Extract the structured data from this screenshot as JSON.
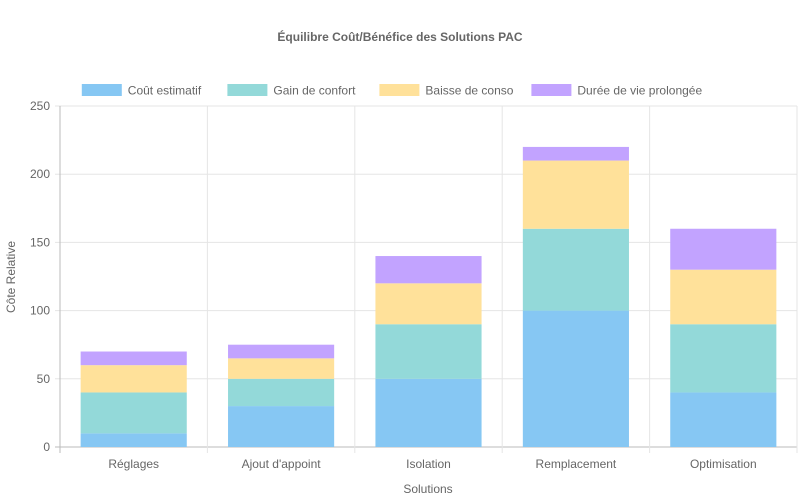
{
  "chart_data": {
    "type": "bar",
    "stacked": true,
    "title": "Équilibre Coût/Bénéfice des Solutions PAC",
    "xlabel": "Solutions",
    "ylabel": "Côte Relative",
    "ylim": [
      0,
      250
    ],
    "yticks": [
      0,
      50,
      100,
      150,
      200,
      250
    ],
    "grid": true,
    "legend_position": "top",
    "categories": [
      "Réglages",
      "Ajout d'appoint",
      "Isolation",
      "Remplacement",
      "Optimisation"
    ],
    "series": [
      {
        "name": "Coût estimatif",
        "color": "#86c7f3",
        "values": [
          10,
          30,
          50,
          100,
          40
        ]
      },
      {
        "name": "Gain de confort",
        "color": "#93d9d9",
        "values": [
          30,
          20,
          40,
          60,
          50
        ]
      },
      {
        "name": "Baisse de conso",
        "color": "#ffe19a",
        "values": [
          20,
          15,
          30,
          50,
          40
        ]
      },
      {
        "name": "Durée de vie prolongée",
        "color": "#c2a3ff",
        "values": [
          10,
          10,
          20,
          10,
          30
        ]
      }
    ]
  }
}
